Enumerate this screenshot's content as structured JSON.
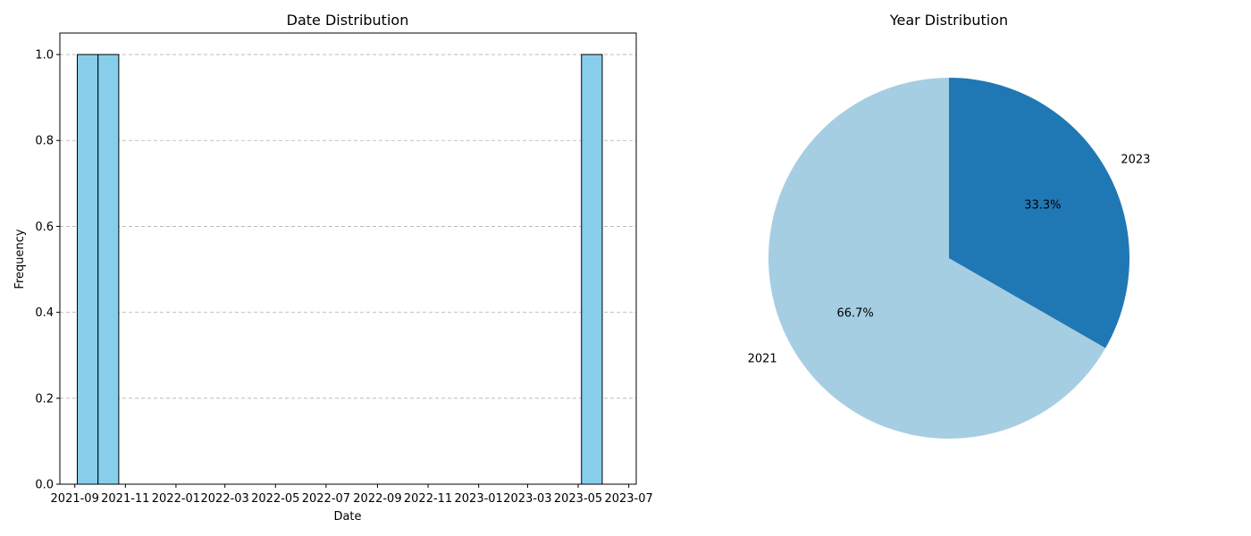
{
  "chart_data": [
    {
      "type": "bar",
      "title": "Date Distribution",
      "xlabel": "Date",
      "ylabel": "Frequency",
      "x_ticks": [
        "2021-09",
        "2021-11",
        "2022-01",
        "2022-03",
        "2022-05",
        "2022-07",
        "2022-09",
        "2022-11",
        "2023-01",
        "2023-03",
        "2023-05",
        "2023-07"
      ],
      "y_ticks": [
        "0.0",
        "0.2",
        "0.4",
        "0.6",
        "0.8",
        "1.0"
      ],
      "ylim": [
        0,
        1.05
      ],
      "xlim": [
        "2021-08-14",
        "2023-07-10"
      ],
      "bins": [
        {
          "start": "2021-09-04",
          "end": "2021-09-29",
          "value": 1
        },
        {
          "start": "2021-09-29",
          "end": "2021-10-24",
          "value": 1
        },
        {
          "start": "2023-05-05",
          "end": "2023-05-30",
          "value": 1
        }
      ],
      "grid": "y-dashed",
      "bar_color": "#87ceeb",
      "edge_color": "#000000"
    },
    {
      "type": "pie",
      "title": "Year Distribution",
      "slices": [
        {
          "label": "2021",
          "value": 66.7,
          "pct_label": "66.7%",
          "color": "#a6cee3"
        },
        {
          "label": "2023",
          "value": 33.3,
          "pct_label": "33.3%",
          "color": "#1f78b4"
        }
      ]
    }
  ]
}
